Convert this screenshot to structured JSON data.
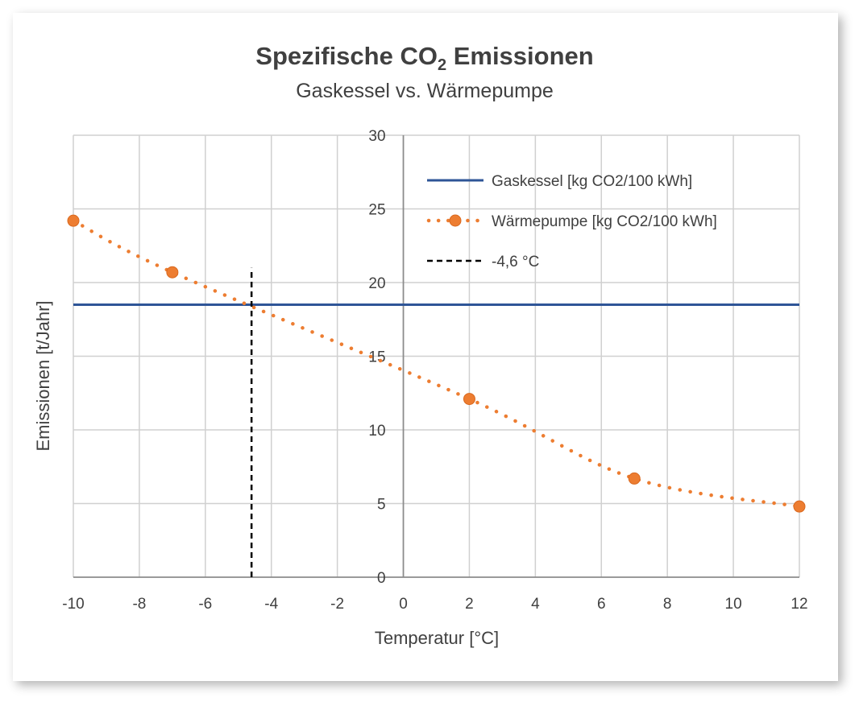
{
  "chart_data": {
    "type": "line",
    "title": {
      "main": "Spezifische CO",
      "sub": "2",
      "rest": " Emissionen"
    },
    "subtitle": "Gaskessel vs. Wärmepumpe",
    "xlabel": "Temperatur [°C]",
    "ylabel": "Emissionen [t/Jahr]",
    "xlim": [
      -10,
      12
    ],
    "ylim": [
      0,
      30
    ],
    "x_ticks": [
      -10,
      -8,
      -6,
      -4,
      -2,
      0,
      2,
      4,
      6,
      8,
      10,
      12
    ],
    "y_ticks": [
      0,
      5,
      10,
      15,
      20,
      25,
      30
    ],
    "grid": true,
    "legend_position": "top-right",
    "series": [
      {
        "name": "Gaskessel [kg CO2/100 kWh]",
        "style": "solid",
        "color": "#2e5597",
        "x": [
          -10,
          12
        ],
        "y": [
          18.5,
          18.5
        ]
      },
      {
        "name": "Wärmepumpe [kg CO2/100 kWh]",
        "style": "dotted-markers",
        "color": "#ed7d31",
        "x": [
          -10,
          -7,
          2,
          7,
          12
        ],
        "y": [
          24.2,
          20.7,
          12.1,
          6.7,
          4.8
        ]
      },
      {
        "name": "-4,6 °C",
        "style": "dashed",
        "color": "#000000",
        "x": [
          -4.6,
          -4.6
        ],
        "y": [
          0,
          21
        ]
      }
    ]
  }
}
